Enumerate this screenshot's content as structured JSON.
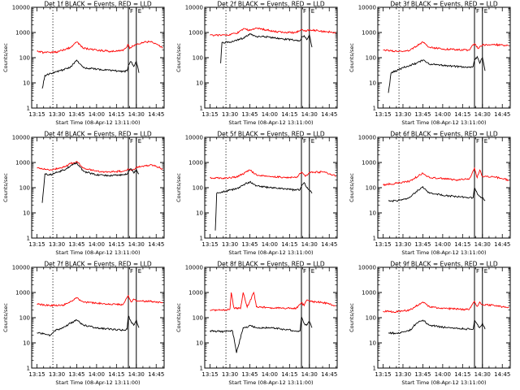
{
  "ylabel": "Counts/sec",
  "xlabel": "Start Time (08-Apr-12 13:11:00)",
  "y_ticks": [
    "1",
    "10",
    "100",
    "1000",
    "10000"
  ],
  "x_ticks": [
    "13:15",
    "13:30",
    "13:45",
    "14:00",
    "14:15",
    "14:30",
    "14:45"
  ],
  "colors": {
    "events": "#000000",
    "lld": "#ff0000",
    "frame": "#000000"
  },
  "panel_titles": [
    "Det 1f BLACK = Events, RED = LLD",
    "Det 2f BLACK = Events, RED = LLD",
    "Det 3f BLACK = Events, RED = LLD",
    "Det 4f BLACK = Events, RED = LLD",
    "Det 5f BLACK = Events, RED = LLD",
    "Det 6f BLACK = Events, RED = LLD",
    "Det 7f BLACK = Events, RED = LLD",
    "Det 8f BLACK = Events, RED = LLD",
    "Det 9f BLACK = Events, RED = LLD"
  ],
  "marker_labels": [
    "F",
    "E"
  ],
  "chart_data": [
    {
      "type": "line",
      "title": "Det 1f BLACK = Events, RED = LLD",
      "xlabel": "Start Time (08-Apr-12 13:11:00)",
      "ylabel": "Counts/sec",
      "ylim": [
        1,
        10000
      ],
      "yscale": "log",
      "xlim": [
        "13:11",
        "14:51"
      ],
      "vlines_dotted": [
        "13:27"
      ],
      "vlines_solid": [
        "14:24",
        "14:30"
      ],
      "series": [
        {
          "name": "LLD",
          "x": [
            "13:15",
            "13:20",
            "13:30",
            "13:40",
            "13:45",
            "13:50",
            "14:00",
            "14:10",
            "14:20",
            "14:24",
            "14:25",
            "14:27",
            "14:30",
            "14:35",
            "14:40",
            "14:45",
            "14:50"
          ],
          "values": [
            180,
            160,
            170,
            250,
            420,
            240,
            200,
            180,
            190,
            330,
            230,
            300,
            330,
            400,
            440,
            350,
            240
          ]
        },
        {
          "name": "Events",
          "x": [
            "13:19",
            "13:21",
            "13:25",
            "13:30",
            "13:40",
            "13:45",
            "13:50",
            "14:00",
            "14:10",
            "14:20",
            "14:23",
            "14:24",
            "14:26",
            "14:28",
            "14:30",
            "14:32"
          ],
          "values": [
            6,
            20,
            24,
            28,
            40,
            80,
            40,
            35,
            32,
            28,
            30,
            50,
            70,
            45,
            70,
            25
          ]
        }
      ]
    },
    {
      "type": "line",
      "title": "Det 2f BLACK = Events, RED = LLD",
      "xlabel": "Start Time (08-Apr-12 13:11:00)",
      "ylabel": "Counts/sec",
      "ylim": [
        1,
        10000
      ],
      "yscale": "log",
      "xlim": [
        "13:11",
        "14:51"
      ],
      "vlines_dotted": [
        "13:27"
      ],
      "vlines_solid": [
        "14:24",
        "14:30"
      ],
      "series": [
        {
          "name": "LLD",
          "x": [
            "13:15",
            "13:25",
            "13:35",
            "13:40",
            "13:45",
            "13:50",
            "14:00",
            "14:10",
            "14:20",
            "14:24",
            "14:27",
            "14:30",
            "14:40",
            "14:50"
          ],
          "values": [
            780,
            800,
            900,
            1400,
            1200,
            1500,
            1200,
            1000,
            1000,
            1300,
            1100,
            1300,
            1100,
            1000
          ]
        },
        {
          "name": "Events",
          "x": [
            "13:23",
            "13:24",
            "13:30",
            "13:40",
            "13:45",
            "13:50",
            "14:00",
            "14:10",
            "14:20",
            "14:23",
            "14:24",
            "14:26",
            "14:28",
            "14:30",
            "14:32"
          ],
          "values": [
            60,
            400,
            420,
            600,
            900,
            700,
            650,
            550,
            500,
            480,
            600,
            750,
            520,
            800,
            260
          ]
        }
      ]
    },
    {
      "type": "line",
      "title": "Det 3f BLACK = Events, RED = LLD",
      "xlabel": "Start Time (08-Apr-12 13:11:00)",
      "ylabel": "Counts/sec",
      "ylim": [
        1,
        10000
      ],
      "yscale": "log",
      "xlim": [
        "13:11",
        "14:51"
      ],
      "vlines_dotted": [
        "13:27"
      ],
      "vlines_solid": [
        "14:24",
        "14:30"
      ],
      "series": [
        {
          "name": "LLD",
          "x": [
            "13:15",
            "13:25",
            "13:35",
            "13:45",
            "13:50",
            "14:00",
            "14:10",
            "14:20",
            "14:24",
            "14:27",
            "14:30",
            "14:40",
            "14:50"
          ],
          "values": [
            200,
            180,
            190,
            420,
            260,
            220,
            210,
            200,
            360,
            230,
            320,
            330,
            300
          ]
        },
        {
          "name": "Events",
          "x": [
            "13:19",
            "13:21",
            "13:25",
            "13:30",
            "13:40",
            "13:45",
            "13:50",
            "14:00",
            "14:10",
            "14:20",
            "14:23",
            "14:24",
            "14:26",
            "14:28",
            "14:30",
            "14:32"
          ],
          "values": [
            4,
            25,
            30,
            40,
            60,
            80,
            55,
            50,
            45,
            42,
            45,
            80,
            110,
            60,
            100,
            30
          ]
        }
      ]
    },
    {
      "type": "line",
      "title": "Det 4f BLACK = Events, RED = LLD",
      "xlabel": "Start Time (08-Apr-12 13:11:00)",
      "ylabel": "Counts/sec",
      "ylim": [
        1,
        10000
      ],
      "yscale": "log",
      "xlim": [
        "13:11",
        "14:51"
      ],
      "vlines_dotted": [
        "13:27"
      ],
      "vlines_solid": [
        "14:24",
        "14:30"
      ],
      "series": [
        {
          "name": "LLD",
          "x": [
            "13:15",
            "13:25",
            "13:35",
            "13:40",
            "13:45",
            "13:50",
            "14:00",
            "14:10",
            "14:20",
            "14:24",
            "14:27",
            "14:30",
            "14:40",
            "14:45",
            "14:50"
          ],
          "values": [
            600,
            500,
            650,
            900,
            1100,
            600,
            450,
            420,
            450,
            550,
            480,
            650,
            800,
            700,
            550
          ]
        },
        {
          "name": "Events",
          "x": [
            "13:19",
            "13:21",
            "13:25",
            "13:35",
            "13:40",
            "13:45",
            "13:50",
            "14:00",
            "14:10",
            "14:20",
            "14:23",
            "14:24",
            "14:26",
            "14:28",
            "14:30",
            "14:32"
          ],
          "values": [
            25,
            350,
            320,
            500,
            700,
            1000,
            450,
            320,
            300,
            320,
            340,
            450,
            560,
            380,
            520,
            350
          ]
        }
      ]
    },
    {
      "type": "line",
      "title": "Det 5f BLACK = Events, RED = LLD",
      "xlabel": "Start Time (08-Apr-12 13:11:00)",
      "ylabel": "Counts/sec",
      "ylim": [
        1,
        10000
      ],
      "yscale": "log",
      "xlim": [
        "13:11",
        "14:51"
      ],
      "vlines_dotted": [
        "13:27"
      ],
      "vlines_solid": [
        "14:24",
        "14:30"
      ],
      "series": [
        {
          "name": "LLD",
          "x": [
            "13:15",
            "13:25",
            "13:35",
            "13:45",
            "13:50",
            "14:00",
            "14:10",
            "14:20",
            "14:24",
            "14:27",
            "14:30",
            "14:40",
            "14:50"
          ],
          "values": [
            250,
            240,
            260,
            500,
            320,
            280,
            260,
            250,
            420,
            280,
            400,
            420,
            300
          ]
        },
        {
          "name": "Events",
          "x": [
            "13:19",
            "13:20",
            "13:25",
            "13:35",
            "13:40",
            "13:45",
            "13:50",
            "14:00",
            "14:10",
            "14:20",
            "14:23",
            "14:24",
            "14:26",
            "14:28",
            "14:30",
            "14:32"
          ],
          "values": [
            2,
            60,
            70,
            90,
            130,
            170,
            120,
            100,
            90,
            80,
            85,
            110,
            160,
            100,
            80,
            60
          ]
        }
      ]
    },
    {
      "type": "line",
      "title": "Det 6f BLACK = Events, RED = LLD",
      "xlabel": "Start Time (08-Apr-12 13:11:00)",
      "ylabel": "Counts/sec",
      "ylim": [
        1,
        10000
      ],
      "yscale": "log",
      "xlim": [
        "13:11",
        "14:51"
      ],
      "vlines_dotted": [
        "13:27"
      ],
      "vlines_solid": [
        "14:24",
        "14:30"
      ],
      "series": [
        {
          "name": "LLD",
          "x": [
            "13:15",
            "13:25",
            "13:35",
            "13:45",
            "13:50",
            "14:00",
            "14:10",
            "14:20",
            "14:24",
            "14:26",
            "14:28",
            "14:30",
            "14:40",
            "14:50"
          ],
          "values": [
            130,
            150,
            180,
            380,
            250,
            230,
            200,
            220,
            600,
            250,
            500,
            280,
            260,
            200
          ]
        },
        {
          "name": "Events",
          "x": [
            "13:19",
            "13:25",
            "13:35",
            "13:40",
            "13:45",
            "13:50",
            "14:00",
            "14:10",
            "14:20",
            "14:23",
            "14:24",
            "14:26",
            "14:28",
            "14:30",
            "14:32"
          ],
          "values": [
            30,
            30,
            40,
            70,
            110,
            60,
            50,
            45,
            40,
            40,
            100,
            60,
            45,
            40,
            30
          ]
        }
      ]
    },
    {
      "type": "line",
      "title": "Det 7f BLACK = Events, RED = LLD",
      "xlabel": "Start Time (08-Apr-12 13:11:00)",
      "ylabel": "Counts/sec",
      "ylim": [
        1,
        10000
      ],
      "yscale": "log",
      "xlim": [
        "13:11",
        "14:51"
      ],
      "vlines_dotted": [
        "13:27"
      ],
      "vlines_solid": [
        "14:24",
        "14:30"
      ],
      "series": [
        {
          "name": "LLD",
          "x": [
            "13:15",
            "13:25",
            "13:35",
            "13:45",
            "13:50",
            "14:00",
            "14:10",
            "14:20",
            "14:24",
            "14:26",
            "14:28",
            "14:30",
            "14:40",
            "14:50"
          ],
          "values": [
            350,
            300,
            320,
            600,
            420,
            380,
            350,
            330,
            750,
            420,
            550,
            450,
            450,
            400
          ]
        },
        {
          "name": "Events",
          "x": [
            "13:15",
            "13:20",
            "13:25",
            "13:28",
            "13:35",
            "13:40",
            "13:45",
            "13:50",
            "14:00",
            "14:10",
            "14:20",
            "14:23",
            "14:24",
            "14:26",
            "14:28",
            "14:30",
            "14:32"
          ],
          "values": [
            25,
            24,
            20,
            30,
            40,
            60,
            80,
            50,
            40,
            35,
            32,
            35,
            120,
            70,
            50,
            80,
            40
          ]
        }
      ]
    },
    {
      "type": "line",
      "title": "Det 8f BLACK = Events, RED = LLD",
      "xlabel": "Start Time (08-Apr-12 13:11:00)",
      "ylabel": "Counts/sec",
      "ylim": [
        1,
        10000
      ],
      "yscale": "log",
      "xlim": [
        "13:11",
        "14:51"
      ],
      "vlines_dotted": [
        "13:27"
      ],
      "vlines_solid": [
        "14:24",
        "14:30"
      ],
      "series": [
        {
          "name": "LLD",
          "x": [
            "13:15",
            "13:25",
            "13:30",
            "13:31",
            "13:33",
            "13:38",
            "13:40",
            "13:43",
            "13:48",
            "13:50",
            "14:00",
            "14:10",
            "14:20",
            "14:24",
            "14:26",
            "14:28",
            "14:30",
            "14:40",
            "14:50"
          ],
          "values": [
            200,
            200,
            220,
            1000,
            250,
            230,
            1000,
            260,
            1000,
            270,
            250,
            240,
            230,
            400,
            300,
            500,
            450,
            400,
            300
          ]
        },
        {
          "name": "Events",
          "x": [
            "13:15",
            "13:25",
            "13:30",
            "13:32",
            "13:35",
            "13:40",
            "13:42",
            "13:45",
            "13:50",
            "14:00",
            "14:10",
            "14:20",
            "14:23",
            "14:24",
            "14:26",
            "14:28",
            "14:30",
            "14:32"
          ],
          "values": [
            30,
            28,
            30,
            30,
            4,
            40,
            40,
            50,
            40,
            40,
            35,
            30,
            30,
            110,
            60,
            50,
            70,
            40
          ]
        }
      ]
    },
    {
      "type": "line",
      "title": "Det 9f BLACK = Events, RED = LLD",
      "xlabel": "Start Time (08-Apr-12 13:11:00)",
      "ylabel": "Counts/sec",
      "ylim": [
        1,
        10000
      ],
      "yscale": "log",
      "xlim": [
        "13:11",
        "14:51"
      ],
      "vlines_dotted": [
        "13:27"
      ],
      "vlines_solid": [
        "14:24",
        "14:30"
      ],
      "series": [
        {
          "name": "LLD",
          "x": [
            "13:15",
            "13:25",
            "13:35",
            "13:45",
            "13:50",
            "14:00",
            "14:10",
            "14:20",
            "14:24",
            "14:26",
            "14:28",
            "14:30",
            "14:40",
            "14:50"
          ],
          "values": [
            180,
            170,
            200,
            420,
            270,
            240,
            220,
            210,
            450,
            280,
            420,
            330,
            300,
            250
          ]
        },
        {
          "name": "Events",
          "x": [
            "13:19",
            "13:25",
            "13:35",
            "13:40",
            "13:45",
            "13:50",
            "14:00",
            "14:10",
            "14:20",
            "14:23",
            "14:24",
            "14:26",
            "14:28",
            "14:30",
            "14:32"
          ],
          "values": [
            25,
            24,
            30,
            60,
            80,
            50,
            42,
            38,
            35,
            35,
            80,
            55,
            40,
            60,
            35
          ]
        }
      ]
    }
  ]
}
